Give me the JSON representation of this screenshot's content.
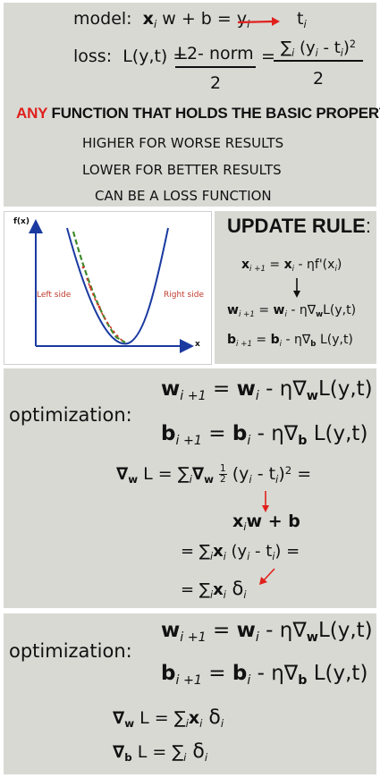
{
  "top": {
    "model_label": "model:",
    "model_lhs_x": "x",
    "model_lhs_sub": "i",
    "model_mid": " w + b = ",
    "model_y": "y",
    "model_y_sub": "i",
    "model_target": "t",
    "model_target_sub": "i",
    "loss_label": "loss:",
    "loss_func": "L(y,t) =",
    "loss_num1": "L2- norm",
    "loss_den1": "2",
    "loss_eq": "=",
    "loss_num2_sum": "∑",
    "loss_num2_sub": "i",
    "loss_num2_body": " (y",
    "loss_num2_yi": "i",
    "loss_num2_minus": " - t",
    "loss_num2_ti": "i",
    "loss_num2_close": ")",
    "loss_num2_sq": "2",
    "loss_den2": "2",
    "any_word": "ANY",
    "headline_rest": " FUNCTION THAT HOLDS THE BASIC PROPERTY",
    "line1": "HIGHER FOR WORSE RESULTS",
    "line2": "LOWER FOR BETTER RESULTS",
    "line3": "CAN BE A LOSS FUNCTION"
  },
  "graph": {
    "y_axis_label": "f(x)",
    "x_axis_label": "x",
    "left_label": "Left side",
    "right_label": "Right side"
  },
  "update": {
    "title": "UPDATE RULE",
    "colon": ":",
    "rule_x": {
      "lhs": "x",
      "lhs_sub": "i +1",
      "eq": " = ",
      "rhs": "x",
      "rhs_sub": "i",
      "rest": " - ηf'(x",
      "rest_sub": "i",
      "close": ")"
    },
    "rule_w": {
      "lhs": "w",
      "lhs_sub": "i +1",
      "eq": " = ",
      "rhs": "w",
      "rhs_sub": "i",
      "rest": " - η∇",
      "nab_sub": "w",
      "end": "L(y,t)"
    },
    "rule_b": {
      "lhs": "b",
      "lhs_sub": "i +1",
      "eq": " = ",
      "rhs": "b",
      "rhs_sub": "i",
      "rest": " - η∇",
      "nab_sub": "b",
      "end": " L(y,t)"
    }
  },
  "opt1": {
    "label": "optimization:",
    "w_line": {
      "lhs": "w",
      "lhs_sub": "i +1",
      "eq": " = ",
      "rhs": "w",
      "rhs_sub": "i",
      "rest": " - η∇",
      "nab_sub": "w",
      "end": "L(y,t)"
    },
    "b_line": {
      "lhs": "b",
      "lhs_sub": "i +1",
      "eq": " = ",
      "rhs": "b",
      "rhs_sub": "i",
      "rest": " - η∇",
      "nab_sub": "b",
      "end": " L(y,t)"
    },
    "grad_nabla": "∇",
    "grad_nab_sub": "w",
    "grad_l": " L = ",
    "grad_sum": "∑",
    "grad_sum_sub": "i",
    "grad_nabla2": "∇",
    "grad_nab2_sub": "w",
    "half_num": "1",
    "half_den": "2",
    "grad_paren": " (y",
    "grad_yi": "i",
    "grad_minus": " - t",
    "grad_ti": "i",
    "grad_close": ")",
    "grad_sq": "2",
    "grad_end": " =",
    "deriv_x": "x",
    "deriv_x_sub": "i",
    "deriv_rest": "w + b",
    "step2_eq": "= ",
    "step2_sum": "∑",
    "step2_sum_sub": "i",
    "step2_x": "x",
    "step2_x_sub": "i",
    "step2_paren": "  (y",
    "step2_yi": "i",
    "step2_minus": " - t",
    "step2_ti": "i",
    "step2_close": ")  =",
    "step3_eq": "= ",
    "step3_sum": "∑",
    "step3_sum_sub": "i",
    "step3_x": "x",
    "step3_x_sub": "i",
    "step3_delta": " δ",
    "step3_delta_sub": "i"
  },
  "opt2": {
    "label": "optimization:",
    "w_line": {
      "lhs": "w",
      "lhs_sub": "i +1",
      "eq": " = ",
      "rhs": "w",
      "rhs_sub": "i",
      "rest": " - η∇",
      "nab_sub": "w",
      "end": "L(y,t)"
    },
    "b_line": {
      "lhs": "b",
      "lhs_sub": "i +1",
      "eq": " = ",
      "rhs": "b",
      "rhs_sub": "i",
      "rest": " - η∇",
      "nab_sub": "b",
      "end": " L(y,t)"
    },
    "gw_nabla": "∇",
    "gw_sub": "w",
    "gw_l": " L = ",
    "gw_sum": "∑",
    "gw_sum_sub": "i",
    "gw_x": "x",
    "gw_x_sub": "i",
    "gw_delta": " δ",
    "gw_delta_sub": "i",
    "gb_nabla": "∇",
    "gb_sub": "b",
    "gb_l": " L = ",
    "gb_sum": "∑",
    "gb_sum_sub": "i",
    "gb_delta": " δ",
    "gb_delta_sub": "i"
  },
  "colors": {
    "panel": "#d9d9d4",
    "red_arrow": "#e0201c",
    "any_red": "#e0201c",
    "curve_blue": "#1a3aa0",
    "curve_green": "#3e8a2a",
    "curve_red": "#d23a2a"
  }
}
